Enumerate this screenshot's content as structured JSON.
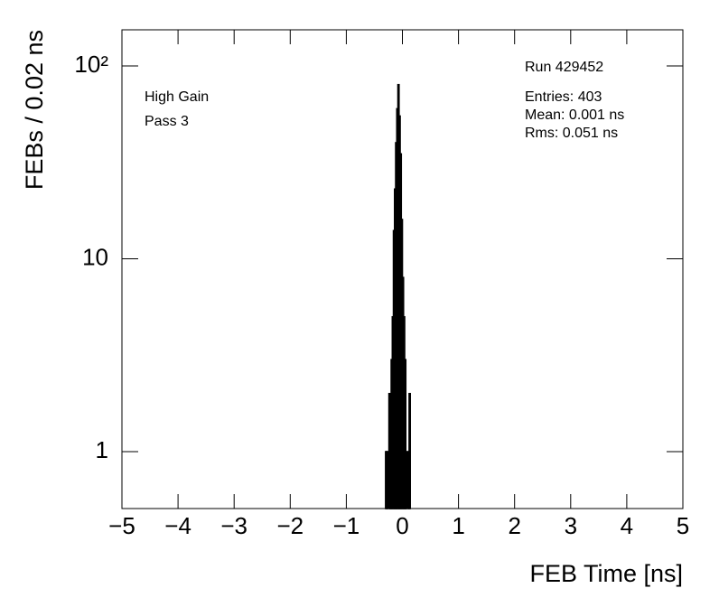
{
  "chart_data": {
    "type": "histogram",
    "x_label": "FEB Time [ns]",
    "y_label": "FEBs / 0.02 ns",
    "annotations": [
      "High Gain",
      "Pass 3",
      "Run 429452",
      "Entries: 403",
      "Mean: 0.001 ns",
      "Rms: 0.051 ns"
    ],
    "bins": [
      -0.3,
      -0.28,
      -0.26,
      -0.24,
      -0.22,
      -0.2,
      -0.18,
      -0.16,
      -0.14,
      -0.12,
      -0.1,
      -0.08,
      -0.06,
      -0.04,
      -0.02,
      0.0,
      0.02,
      0.04,
      0.06,
      0.08,
      0.1,
      0.12,
      0.14,
      0.16,
      0.18,
      0.2
    ],
    "values": [
      1,
      1,
      0,
      2,
      1,
      3,
      5,
      14,
      23,
      40,
      60,
      80,
      55,
      35,
      16,
      8,
      5,
      3,
      1,
      0,
      1,
      2,
      0,
      0,
      0
    ],
    "color": "#000000",
    "xlim": [
      -5,
      5
    ],
    "ylim": [
      0.507,
      154
    ],
    "log_y": true,
    "xticks": [
      {
        "value": -5,
        "label": "−5"
      },
      {
        "value": -4,
        "label": "−4"
      },
      {
        "value": -3,
        "label": "−3"
      },
      {
        "value": -2,
        "label": "−2"
      },
      {
        "value": -1,
        "label": "−1"
      },
      0,
      1,
      2,
      3,
      4,
      5
    ],
    "yticks": [
      1,
      10,
      {
        "value": 100,
        "label": "10²"
      }
    ]
  }
}
